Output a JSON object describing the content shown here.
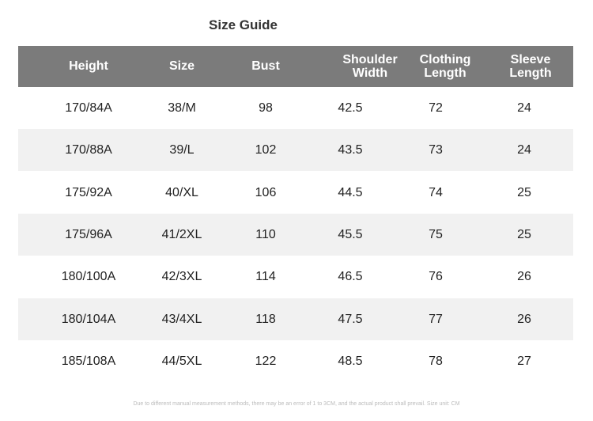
{
  "header": {
    "title": "Size Guide"
  },
  "table": {
    "columns": [
      "Height",
      "Size",
      "Bust",
      "Shoulder Width",
      "Clothing Length",
      "Sleeve Length"
    ],
    "rows": [
      [
        "170/84A",
        "38/M",
        "98",
        "42.5",
        "72",
        "24"
      ],
      [
        "170/88A",
        "39/L",
        "102",
        "43.5",
        "73",
        "24"
      ],
      [
        "175/92A",
        "40/XL",
        "106",
        "44.5",
        "74",
        "25"
      ],
      [
        "175/96A",
        "41/2XL",
        "110",
        "45.5",
        "75",
        "25"
      ],
      [
        "180/100A",
        "42/3XL",
        "114",
        "46.5",
        "76",
        "26"
      ],
      [
        "180/104A",
        "43/4XL",
        "118",
        "47.5",
        "77",
        "26"
      ],
      [
        "185/108A",
        "44/5XL",
        "122",
        "48.5",
        "78",
        "27"
      ]
    ]
  },
  "footnote": "Due to different manual measurement methods, there may be an error of 1 to 3CM, and the actual product shall prevail. Size unit: CM"
}
